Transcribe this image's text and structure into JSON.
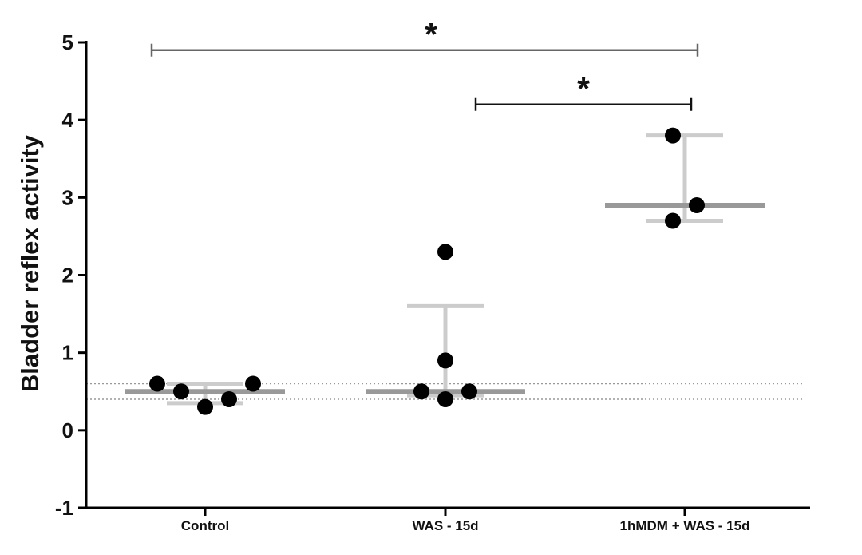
{
  "chart_data": {
    "type": "scatter",
    "ylabel": "Bladder reflex activity",
    "ylim": [
      -1,
      5
    ],
    "yticks": [
      -1,
      0,
      1,
      2,
      3,
      4,
      5
    ],
    "categories": [
      "Control",
      "WAS - 15d",
      "1hMDM + WAS - 15d"
    ],
    "groups": [
      {
        "category": "Control",
        "points": [
          0.6,
          0.5,
          0.3,
          0.4,
          0.6
        ],
        "median": 0.5,
        "error_low": 0.35,
        "error_high": 0.6
      },
      {
        "category": "WAS - 15d",
        "points": [
          0.5,
          0.9,
          2.3,
          0.4,
          0.5
        ],
        "median": 0.5,
        "error_low": 0.45,
        "error_high": 1.6
      },
      {
        "category": "1hMDM + WAS - 15d",
        "points": [
          3.8,
          2.7,
          2.9
        ],
        "median": 2.9,
        "error_low": 2.7,
        "error_high": 3.8
      }
    ],
    "reference_lines": [
      0.6,
      0.4
    ],
    "significance": [
      {
        "from": "Control",
        "to": "1hMDM + WAS - 15d",
        "y": 4.9,
        "label": "*"
      },
      {
        "from": "WAS - 15d",
        "to": "1hMDM + WAS - 15d",
        "y": 4.2,
        "label": "*"
      }
    ],
    "colors": {
      "point": "#000000",
      "median": "#999999",
      "errorbar": "#cccccc",
      "sig_line_long": "#666666",
      "sig_line_short": "#111111",
      "axis": "#000000",
      "reference": "#999999"
    }
  }
}
